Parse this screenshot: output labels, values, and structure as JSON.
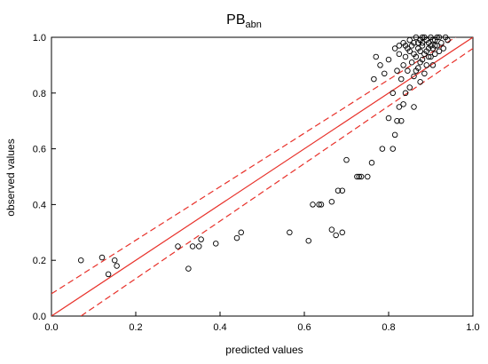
{
  "chart_data": {
    "type": "scatter",
    "title": "PB",
    "title_subscript": "abn",
    "xlabel": "predicted values",
    "ylabel": "observed values",
    "xlim": [
      0.0,
      1.0
    ],
    "ylim": [
      0.0,
      1.0
    ],
    "xticks": [
      "0.0",
      "0.2",
      "0.4",
      "0.6",
      "0.8",
      "1.0"
    ],
    "yticks": [
      "0.0",
      "0.2",
      "0.4",
      "0.6",
      "0.8",
      "1.0"
    ],
    "grid": false,
    "legend": "none",
    "colors": {
      "points": "#000000",
      "fit_line": "#e8312a"
    },
    "fit_line": {
      "style": "solid",
      "from": [
        0.0,
        0.0
      ],
      "to": [
        1.0,
        1.0
      ]
    },
    "confidence_band": {
      "style": "dashed",
      "upper": {
        "from": [
          0.0,
          0.08
        ],
        "to": [
          1.0,
          1.04
        ]
      },
      "lower": {
        "from": [
          0.07,
          0.0
        ],
        "to": [
          1.0,
          0.96
        ]
      }
    },
    "points": [
      {
        "x": 0.07,
        "y": 0.2
      },
      {
        "x": 0.12,
        "y": 0.21
      },
      {
        "x": 0.135,
        "y": 0.15
      },
      {
        "x": 0.15,
        "y": 0.2
      },
      {
        "x": 0.155,
        "y": 0.18
      },
      {
        "x": 0.3,
        "y": 0.25
      },
      {
        "x": 0.325,
        "y": 0.17
      },
      {
        "x": 0.335,
        "y": 0.25
      },
      {
        "x": 0.35,
        "y": 0.25
      },
      {
        "x": 0.355,
        "y": 0.275
      },
      {
        "x": 0.39,
        "y": 0.26
      },
      {
        "x": 0.44,
        "y": 0.28
      },
      {
        "x": 0.45,
        "y": 0.3
      },
      {
        "x": 0.565,
        "y": 0.3
      },
      {
        "x": 0.61,
        "y": 0.27
      },
      {
        "x": 0.62,
        "y": 0.4
      },
      {
        "x": 0.635,
        "y": 0.4
      },
      {
        "x": 0.64,
        "y": 0.4
      },
      {
        "x": 0.665,
        "y": 0.41
      },
      {
        "x": 0.665,
        "y": 0.31
      },
      {
        "x": 0.675,
        "y": 0.29
      },
      {
        "x": 0.68,
        "y": 0.45
      },
      {
        "x": 0.69,
        "y": 0.45
      },
      {
        "x": 0.69,
        "y": 0.3
      },
      {
        "x": 0.7,
        "y": 0.56
      },
      {
        "x": 0.725,
        "y": 0.5
      },
      {
        "x": 0.73,
        "y": 0.5
      },
      {
        "x": 0.735,
        "y": 0.5
      },
      {
        "x": 0.75,
        "y": 0.5
      },
      {
        "x": 0.76,
        "y": 0.55
      },
      {
        "x": 0.785,
        "y": 0.6
      },
      {
        "x": 0.8,
        "y": 0.71
      },
      {
        "x": 0.81,
        "y": 0.6
      },
      {
        "x": 0.815,
        "y": 0.65
      },
      {
        "x": 0.82,
        "y": 0.7
      },
      {
        "x": 0.825,
        "y": 0.75
      },
      {
        "x": 0.83,
        "y": 0.7
      },
      {
        "x": 0.835,
        "y": 0.76
      },
      {
        "x": 0.84,
        "y": 0.8
      },
      {
        "x": 0.86,
        "y": 0.75
      },
      {
        "x": 0.765,
        "y": 0.85
      },
      {
        "x": 0.77,
        "y": 0.93
      },
      {
        "x": 0.78,
        "y": 0.9
      },
      {
        "x": 0.79,
        "y": 0.87
      },
      {
        "x": 0.8,
        "y": 0.92
      },
      {
        "x": 0.81,
        "y": 0.8
      },
      {
        "x": 0.815,
        "y": 0.96
      },
      {
        "x": 0.82,
        "y": 0.88
      },
      {
        "x": 0.825,
        "y": 0.94
      },
      {
        "x": 0.83,
        "y": 0.85
      },
      {
        "x": 0.835,
        "y": 0.9
      },
      {
        "x": 0.84,
        "y": 0.97
      },
      {
        "x": 0.84,
        "y": 0.93
      },
      {
        "x": 0.845,
        "y": 0.88
      },
      {
        "x": 0.85,
        "y": 0.82
      },
      {
        "x": 0.85,
        "y": 0.95
      },
      {
        "x": 0.855,
        "y": 0.91
      },
      {
        "x": 0.86,
        "y": 0.86
      },
      {
        "x": 0.86,
        "y": 0.98
      },
      {
        "x": 0.865,
        "y": 0.93
      },
      {
        "x": 0.87,
        "y": 0.89
      },
      {
        "x": 0.87,
        "y": 0.96
      },
      {
        "x": 0.875,
        "y": 0.99
      },
      {
        "x": 0.875,
        "y": 0.84
      },
      {
        "x": 0.88,
        "y": 0.92
      },
      {
        "x": 0.88,
        "y": 0.97
      },
      {
        "x": 0.885,
        "y": 0.87
      },
      {
        "x": 0.885,
        "y": 1.0
      },
      {
        "x": 0.89,
        "y": 0.95
      },
      {
        "x": 0.89,
        "y": 0.9
      },
      {
        "x": 0.895,
        "y": 0.98
      },
      {
        "x": 0.9,
        "y": 0.93
      },
      {
        "x": 0.9,
        "y": 1.0
      },
      {
        "x": 0.905,
        "y": 0.96
      },
      {
        "x": 0.905,
        "y": 0.9
      },
      {
        "x": 0.91,
        "y": 0.99
      },
      {
        "x": 0.91,
        "y": 0.94
      },
      {
        "x": 0.915,
        "y": 0.97
      },
      {
        "x": 0.92,
        "y": 1.0
      },
      {
        "x": 0.92,
        "y": 0.95
      },
      {
        "x": 0.925,
        "y": 0.98
      },
      {
        "x": 0.93,
        "y": 0.96
      },
      {
        "x": 0.935,
        "y": 1.0
      },
      {
        "x": 0.94,
        "y": 0.99
      },
      {
        "x": 0.865,
        "y": 1.0
      },
      {
        "x": 0.87,
        "y": 0.98
      },
      {
        "x": 0.875,
        "y": 0.95
      },
      {
        "x": 0.88,
        "y": 1.0
      },
      {
        "x": 0.89,
        "y": 0.99
      },
      {
        "x": 0.895,
        "y": 0.96
      },
      {
        "x": 0.9,
        "y": 0.97
      },
      {
        "x": 0.855,
        "y": 0.97
      },
      {
        "x": 0.86,
        "y": 0.94
      },
      {
        "x": 0.85,
        "y": 0.99
      },
      {
        "x": 0.845,
        "y": 0.96
      },
      {
        "x": 0.835,
        "y": 0.98
      },
      {
        "x": 0.825,
        "y": 0.97
      },
      {
        "x": 0.91,
        "y": 0.97
      },
      {
        "x": 0.915,
        "y": 1.0
      },
      {
        "x": 0.905,
        "y": 0.99
      },
      {
        "x": 0.895,
        "y": 0.93
      },
      {
        "x": 0.885,
        "y": 0.94
      },
      {
        "x": 0.875,
        "y": 0.91
      },
      {
        "x": 0.865,
        "y": 0.88
      },
      {
        "x": 0.88,
        "y": 0.98
      }
    ]
  }
}
